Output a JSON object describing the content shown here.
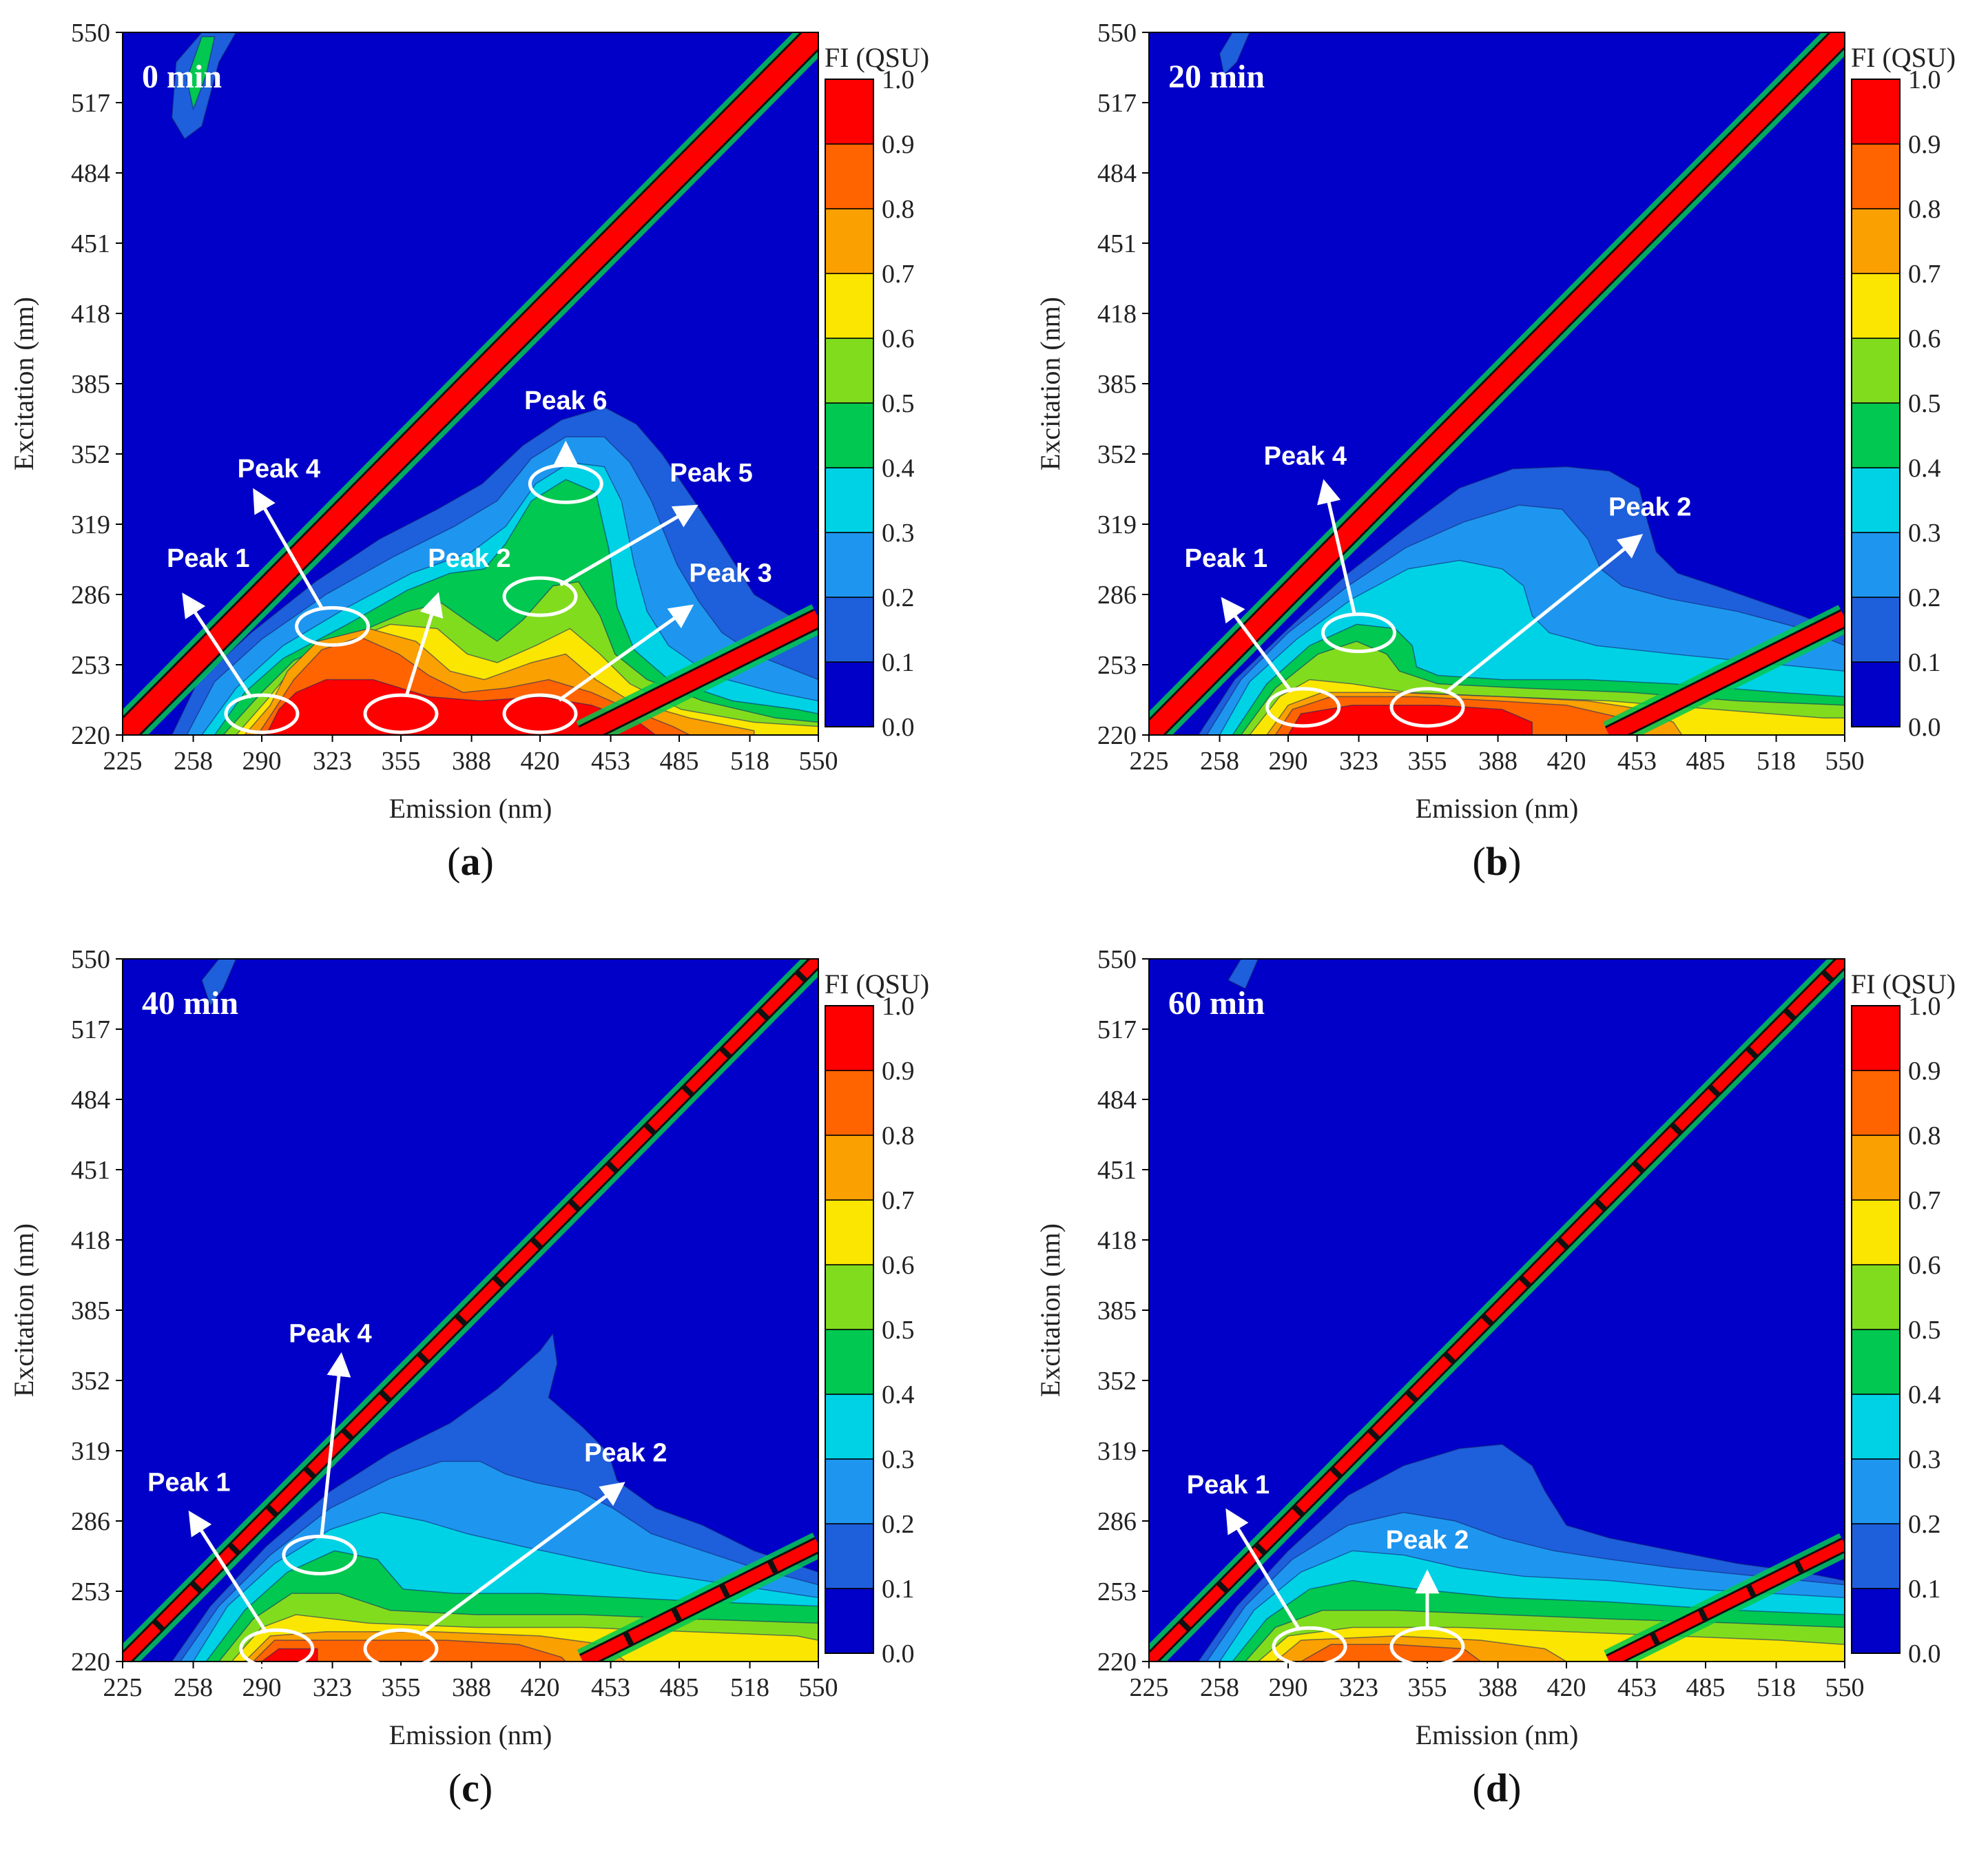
{
  "figure": {
    "colors": {
      "levels": [
        "#0000c8",
        "#1e5fdc",
        "#1e96f0",
        "#00d2e6",
        "#00c850",
        "#82dc1e",
        "#fae600",
        "#faa000",
        "#ff6400",
        "#ff0000"
      ],
      "ellipse": "#ffffff",
      "arrow": "#ffffff"
    }
  },
  "chart_data": [
    {
      "type": "heatmap",
      "panel": "a",
      "caption_letter": "a",
      "time_label": "0 min",
      "xlabel": "Emission (nm)",
      "ylabel": "Excitation (nm)",
      "colorbar_label": "FI (QSU)",
      "xlim": [
        225,
        550
      ],
      "ylim": [
        220,
        550
      ],
      "x_ticks": [
        "225",
        "258",
        "290",
        "323",
        "355",
        "388",
        "420",
        "453",
        "485",
        "518",
        "550"
      ],
      "y_ticks": [
        "220",
        "253",
        "286",
        "319",
        "352",
        "385",
        "418",
        "451",
        "484",
        "517",
        "550"
      ],
      "colorbar_ticks": [
        "0.0",
        "0.1",
        "0.2",
        "0.3",
        "0.4",
        "0.5",
        "0.6",
        "0.7",
        "0.8",
        "0.9",
        "1.0"
      ],
      "scatter_lines": [
        "rayleigh-first-order",
        "rayleigh-second-order"
      ],
      "peaks": [
        {
          "label": "Peak 1",
          "em": 290,
          "ex": 230,
          "label_em": 265,
          "label_ex": 299,
          "tip_em": 254,
          "tip_ex": 285
        },
        {
          "label": "Peak 2",
          "em": 355,
          "ex": 230,
          "label_em": 387,
          "label_ex": 299,
          "tip_em": 372,
          "tip_ex": 285
        },
        {
          "label": "Peak 3",
          "em": 420,
          "ex": 230,
          "label_em": 509,
          "label_ex": 292,
          "tip_em": 490,
          "tip_ex": 280
        },
        {
          "label": "Peak 4",
          "em": 323,
          "ex": 271,
          "label_em": 298,
          "label_ex": 341,
          "tip_em": 287,
          "tip_ex": 334
        },
        {
          "label": "Peak 5",
          "em": 420,
          "ex": 285,
          "label_em": 500,
          "label_ex": 339,
          "tip_em": 492,
          "tip_ex": 327
        },
        {
          "label": "Peak 6",
          "em": 432,
          "ex": 338,
          "label_em": 432,
          "label_ex": 373,
          "tip_em": 432,
          "tip_ex": 356
        }
      ]
    },
    {
      "type": "heatmap",
      "panel": "b",
      "caption_letter": "b",
      "time_label": "20 min",
      "xlabel": "Emission (nm)",
      "ylabel": "Excitation (nm)",
      "colorbar_label": "FI (QSU)",
      "xlim": [
        225,
        550
      ],
      "ylim": [
        220,
        550
      ],
      "x_ticks": [
        "225",
        "258",
        "290",
        "323",
        "355",
        "388",
        "420",
        "453",
        "485",
        "518",
        "550"
      ],
      "y_ticks": [
        "220",
        "253",
        "286",
        "319",
        "352",
        "385",
        "418",
        "451",
        "484",
        "517",
        "550"
      ],
      "colorbar_ticks": [
        "0.0",
        "0.1",
        "0.2",
        "0.3",
        "0.4",
        "0.5",
        "0.6",
        "0.7",
        "0.8",
        "0.9",
        "1.0"
      ],
      "scatter_lines": [
        "rayleigh-first-order",
        "rayleigh-second-order"
      ],
      "peaks": [
        {
          "label": "Peak 1",
          "em": 297,
          "ex": 233,
          "label_em": 261,
          "label_ex": 299,
          "tip_em": 260,
          "tip_ex": 283
        },
        {
          "label": "Peak 2",
          "em": 355,
          "ex": 233,
          "label_em": 459,
          "label_ex": 323,
          "tip_em": 454,
          "tip_ex": 313
        },
        {
          "label": "Peak 4",
          "em": 323,
          "ex": 268,
          "label_em": 298,
          "label_ex": 347,
          "tip_em": 307,
          "tip_ex": 338
        }
      ]
    },
    {
      "type": "heatmap",
      "panel": "c",
      "caption_letter": "c",
      "time_label": "40 min",
      "xlabel": "Emission (nm)",
      "ylabel": "Excitation (nm)",
      "colorbar_label": "FI (QSU)",
      "xlim": [
        225,
        550
      ],
      "ylim": [
        220,
        550
      ],
      "x_ticks": [
        "225",
        "258",
        "290",
        "323",
        "355",
        "388",
        "420",
        "453",
        "485",
        "518",
        "550"
      ],
      "y_ticks": [
        "220",
        "253",
        "286",
        "319",
        "352",
        "385",
        "418",
        "451",
        "484",
        "517",
        "550"
      ],
      "colorbar_ticks": [
        "0.0",
        "0.1",
        "0.2",
        "0.3",
        "0.4",
        "0.5",
        "0.6",
        "0.7",
        "0.8",
        "0.9",
        "1.0"
      ],
      "scatter_lines": [
        "rayleigh-first-order",
        "rayleigh-second-order"
      ],
      "peaks": [
        {
          "label": "Peak 1",
          "em": 297,
          "ex": 226,
          "label_em": 256,
          "label_ex": 300,
          "tip_em": 257,
          "tip_ex": 289
        },
        {
          "label": "Peak 2",
          "em": 355,
          "ex": 226,
          "label_em": 460,
          "label_ex": 314,
          "tip_em": 458,
          "tip_ex": 303
        },
        {
          "label": "Peak 4",
          "em": 317,
          "ex": 270,
          "label_em": 322,
          "label_ex": 370,
          "tip_em": 327,
          "tip_ex": 363
        }
      ]
    },
    {
      "type": "heatmap",
      "panel": "d",
      "caption_letter": "d",
      "time_label": "60 min",
      "xlabel": "Emission (nm)",
      "ylabel": "Excitation (nm)",
      "colorbar_label": "FI (QSU)",
      "xlim": [
        225,
        550
      ],
      "ylim": [
        220,
        550
      ],
      "x_ticks": [
        "225",
        "258",
        "290",
        "323",
        "355",
        "388",
        "420",
        "453",
        "485",
        "518",
        "550"
      ],
      "y_ticks": [
        "220",
        "253",
        "286",
        "319",
        "352",
        "385",
        "418",
        "451",
        "484",
        "517",
        "550"
      ],
      "colorbar_ticks": [
        "0.0",
        "0.1",
        "0.2",
        "0.3",
        "0.4",
        "0.5",
        "0.6",
        "0.7",
        "0.8",
        "0.9",
        "1.0"
      ],
      "scatter_lines": [
        "rayleigh-first-order",
        "rayleigh-second-order"
      ],
      "peaks": [
        {
          "label": "Peak 1",
          "em": 300,
          "ex": 227,
          "label_em": 262,
          "label_ex": 299,
          "tip_em": 262,
          "tip_ex": 290
        },
        {
          "label": "Peak 2",
          "em": 355,
          "ex": 227,
          "label_em": 355,
          "label_ex": 273,
          "tip_em": 355,
          "tip_ex": 261
        }
      ]
    }
  ]
}
